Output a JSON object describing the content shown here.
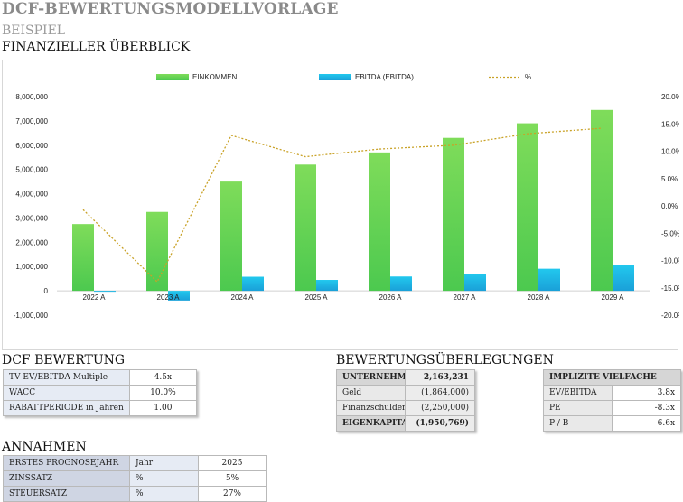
{
  "header": {
    "title": "DCF-BEWERTUNGSMODELLVORLAGE",
    "subtitle": "BEISPIEL",
    "overview": "FINANZIELLER ÜBERBLICK"
  },
  "colors": {
    "income": "#4cc94f",
    "ebitda": "#1aa0d8",
    "percent": "#c9a227"
  },
  "chart_data": {
    "type": "bar",
    "categories": [
      "2022 A",
      "2023 A",
      "2024 A",
      "2025 A",
      "2026 A",
      "2027 A",
      "2028 A",
      "2029 A"
    ],
    "series": [
      {
        "name": "EINKOMMEN",
        "kind": "bar",
        "axis": "left",
        "values": [
          2750000,
          3250000,
          4500000,
          5200000,
          5700000,
          6300000,
          6900000,
          7450000
        ]
      },
      {
        "name": "EBITDA (EBITDA)",
        "kind": "bar",
        "axis": "left",
        "values": [
          -20000,
          -400000,
          580000,
          450000,
          590000,
          700000,
          910000,
          1060000
        ]
      },
      {
        "name": "%",
        "kind": "line",
        "axis": "right",
        "values": [
          -0.7,
          -13.9,
          12.9,
          9.0,
          10.4,
          11.1,
          13.2,
          14.2
        ]
      }
    ],
    "ylim": [
      -1000000,
      8000000
    ],
    "y_ticks": [
      -1000000,
      0,
      1000000,
      2000000,
      3000000,
      4000000,
      5000000,
      6000000,
      7000000,
      8000000
    ],
    "y_tick_labels": [
      "-1,000,000",
      "0",
      "1,000,000",
      "2,000,000",
      "3,000,000",
      "4,000,000",
      "5,000,000",
      "6,000,000",
      "7,000,000",
      "8,000,000"
    ],
    "y2lim": [
      -20.0,
      20.0
    ],
    "y2_ticks": [
      -20,
      -15,
      -10,
      -5,
      0,
      5,
      10,
      15,
      20
    ],
    "y2_tick_labels": [
      "-20.0%",
      "-15.0%",
      "-10.0%",
      "-5.0%",
      "0.0%",
      "5.0%",
      "10.0%",
      "15.0%",
      "20.0%"
    ],
    "legend": "top"
  },
  "dcf": {
    "heading": "DCF BEWERTUNG",
    "rows": [
      {
        "label": "TV EV/EBITDA Multiple",
        "value": "4.5x"
      },
      {
        "label": "WACC",
        "value": "10.0%"
      },
      {
        "label": "RABATTPERIODE  in Jahren",
        "value": "1.00"
      }
    ]
  },
  "valuation": {
    "heading": "BEWERTUNGSÜBERLEGUNGEN",
    "rows": [
      {
        "label": "UNTERNEHMENSWERT",
        "value": "2,163,231"
      },
      {
        "label": "Geld",
        "value": "(1,864,000)"
      },
      {
        "label": "Finanzschulden",
        "value": "(2,250,000)"
      },
      {
        "label": "EIGENKAPITALWERT",
        "value": "(1,950,769)"
      }
    ]
  },
  "multiples": {
    "heading": "IMPLIZITE VIELFACHE",
    "rows": [
      {
        "label": "EV/EBITDA",
        "value": "3.8x"
      },
      {
        "label": "PE",
        "value": "-8.3x"
      },
      {
        "label": "P / B",
        "value": "6.6x"
      }
    ]
  },
  "assumptions": {
    "heading": "ANNAHMEN",
    "rows": [
      {
        "label": "ERSTES PROGNOSEJAHR",
        "unit": "Jahr",
        "value": "2025"
      },
      {
        "label": "ZINSSATZ",
        "unit": "%",
        "value": "5%"
      },
      {
        "label": "STEUERSATZ",
        "unit": "%",
        "value": "27%"
      }
    ]
  }
}
